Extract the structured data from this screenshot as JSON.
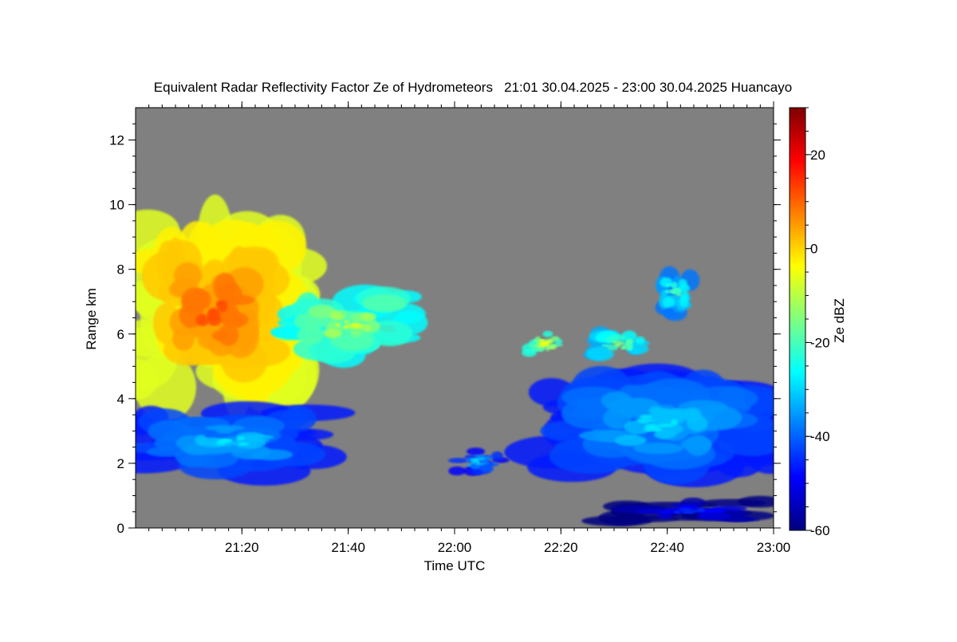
{
  "chart_data": {
    "type": "heatmap",
    "title": "Equivalent Radar Reflectivity Factor Ze of Hydrometeors   21:01 30.04.2025 - 23:00 30.04.2025 Huancayo",
    "xlabel": "Time UTC",
    "ylabel": "Range km",
    "colorbar_label": "Ze dBZ",
    "background_color": "#808080",
    "x_range_minutes": [
      0,
      120
    ],
    "x_ticks": [
      {
        "label": "21:20",
        "minutes": 20
      },
      {
        "label": "21:40",
        "minutes": 40
      },
      {
        "label": "22:00",
        "minutes": 60
      },
      {
        "label": "22:20",
        "minutes": 80
      },
      {
        "label": "22:40",
        "minutes": 100
      },
      {
        "label": "23:00",
        "minutes": 120
      }
    ],
    "y_range_km": [
      0,
      13
    ],
    "y_ticks": [
      "0",
      "2",
      "4",
      "6",
      "8",
      "10",
      "12"
    ],
    "colorbar_range_dbz": [
      -60,
      30
    ],
    "colorbar_ticks": [
      "20",
      "0",
      "-20",
      "-40",
      "-60"
    ],
    "colormap": [
      "#00007f",
      "#0000ff",
      "#007fff",
      "#00ffff",
      "#7fff7f",
      "#ffff00",
      "#ff7f00",
      "#ff0000",
      "#7f0000"
    ],
    "echoes": [
      {
        "name": "deep-convective-core",
        "t_start": 0,
        "t_end": 30,
        "base_km": 4.2,
        "top_km": 9.2,
        "max_dbz": 12
      },
      {
        "name": "anvil-outflow",
        "t_start": 28,
        "t_end": 52,
        "base_km": 5.3,
        "top_km": 7.3,
        "max_dbz": -8
      },
      {
        "name": "low-echo-west",
        "t_start": 0,
        "t_end": 35,
        "base_km": 1.7,
        "top_km": 3.6,
        "max_dbz": -28
      },
      {
        "name": "low-echo-22:02",
        "t_start": 59,
        "t_end": 69,
        "base_km": 1.7,
        "top_km": 2.4,
        "max_dbz": -30
      },
      {
        "name": "cell-22:17",
        "t_start": 74,
        "t_end": 80,
        "base_km": 5.4,
        "top_km": 6.0,
        "max_dbz": -5
      },
      {
        "name": "cell-22:35",
        "t_start": 85,
        "t_end": 97,
        "base_km": 5.2,
        "top_km": 6.2,
        "max_dbz": -15
      },
      {
        "name": "cells-22:40",
        "t_start": 97,
        "t_end": 106,
        "base_km": 6.6,
        "top_km": 8.0,
        "max_dbz": -20
      },
      {
        "name": "mid-layer-east",
        "t_start": 78,
        "t_end": 120,
        "base_km": 1.7,
        "top_km": 4.7,
        "max_dbz": -28
      },
      {
        "name": "near-surface-east",
        "t_start": 89,
        "t_end": 120,
        "base_km": 0.1,
        "top_km": 1.0,
        "max_dbz": -45
      }
    ]
  }
}
